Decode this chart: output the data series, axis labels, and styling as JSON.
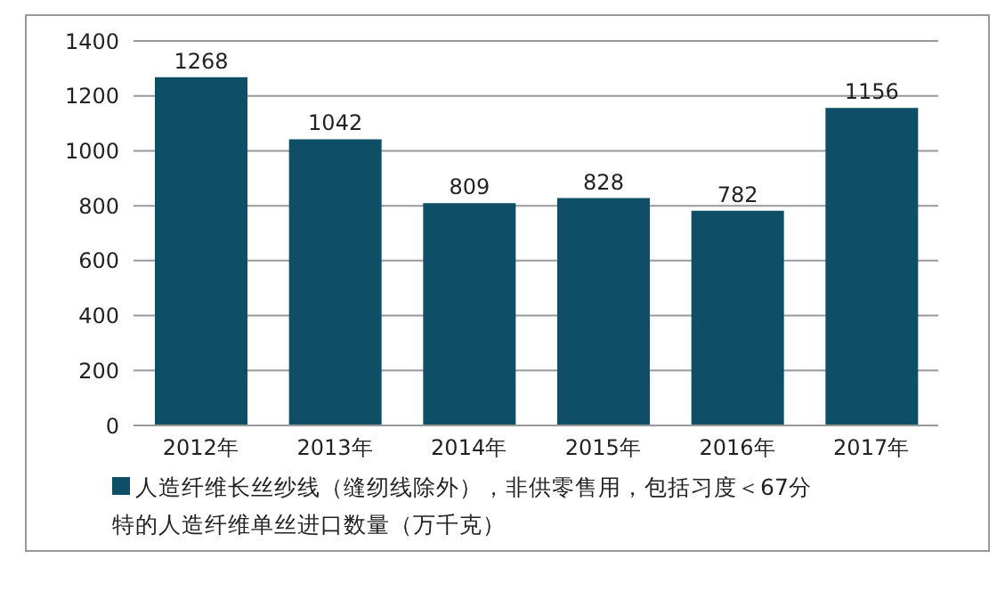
{
  "chart_data": {
    "type": "bar",
    "categories": [
      "2012年",
      "2013年",
      "2014年",
      "2015年",
      "2016年",
      "2017年"
    ],
    "series": [
      {
        "name": "人造纤维长丝纱线（缝纫线除外），非供零售用，包括习度＜67分特的人造纤维单丝进口数量（万千克）",
        "color": "#0e4f67",
        "values": [
          1268,
          1042,
          809,
          828,
          782,
          1156
        ]
      }
    ],
    "ylim": [
      0,
      1400
    ],
    "yticks": [
      0,
      200,
      400,
      600,
      800,
      1000,
      1200,
      1400
    ],
    "grid": "y",
    "data_labels": true,
    "legend": "bottom"
  }
}
